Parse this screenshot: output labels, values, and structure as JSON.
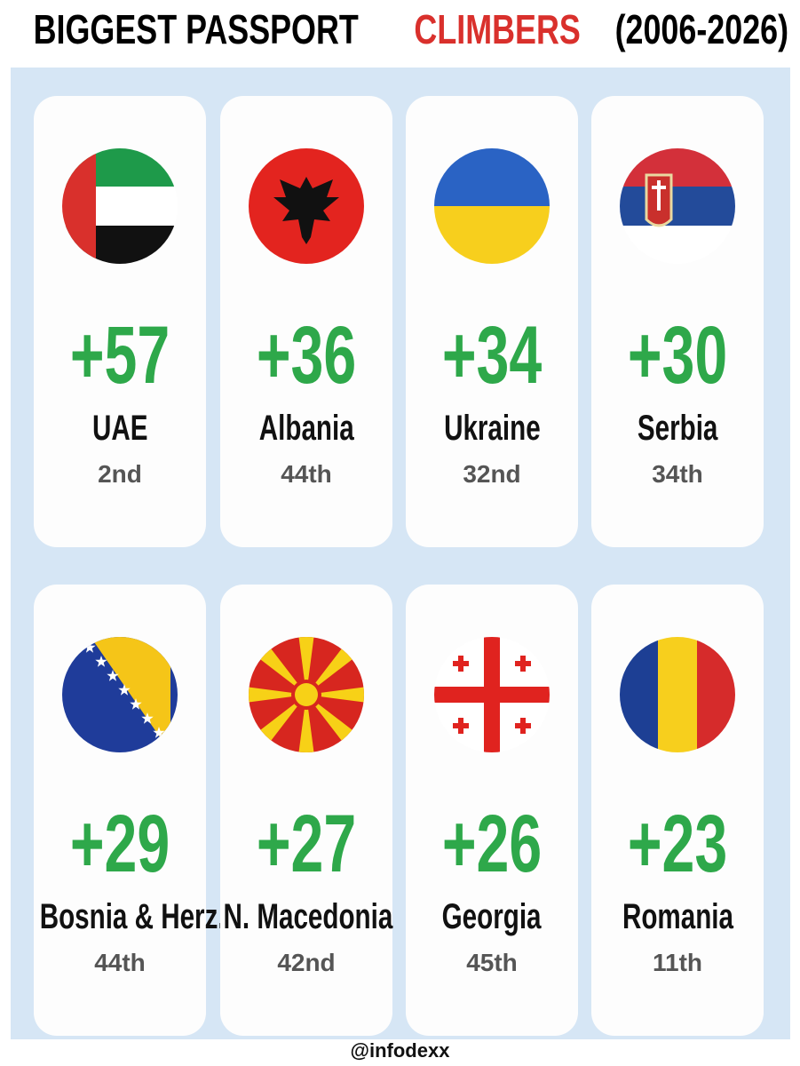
{
  "header": {
    "title_parts": [
      "BIGGEST PASSPORT",
      "CLIMBERS",
      "(2006-2026)"
    ]
  },
  "cards": [
    {
      "change": "+57",
      "country": "UAE",
      "rank": "2nd"
    },
    {
      "change": "+36",
      "country": "Albania",
      "rank": "44th"
    },
    {
      "change": "+34",
      "country": "Ukraine",
      "rank": "32nd"
    },
    {
      "change": "+30",
      "country": "Serbia",
      "rank": "34th"
    },
    {
      "change": "+29",
      "country": "Bosnia & Herz.",
      "rank": "44th"
    },
    {
      "change": "+27",
      "country": "N. Macedonia",
      "rank": "42nd"
    },
    {
      "change": "+26",
      "country": "Georgia",
      "rank": "45th"
    },
    {
      "change": "+23",
      "country": "Romania",
      "rank": "11th"
    }
  ],
  "footer": {
    "handle": "@infodexx"
  }
}
